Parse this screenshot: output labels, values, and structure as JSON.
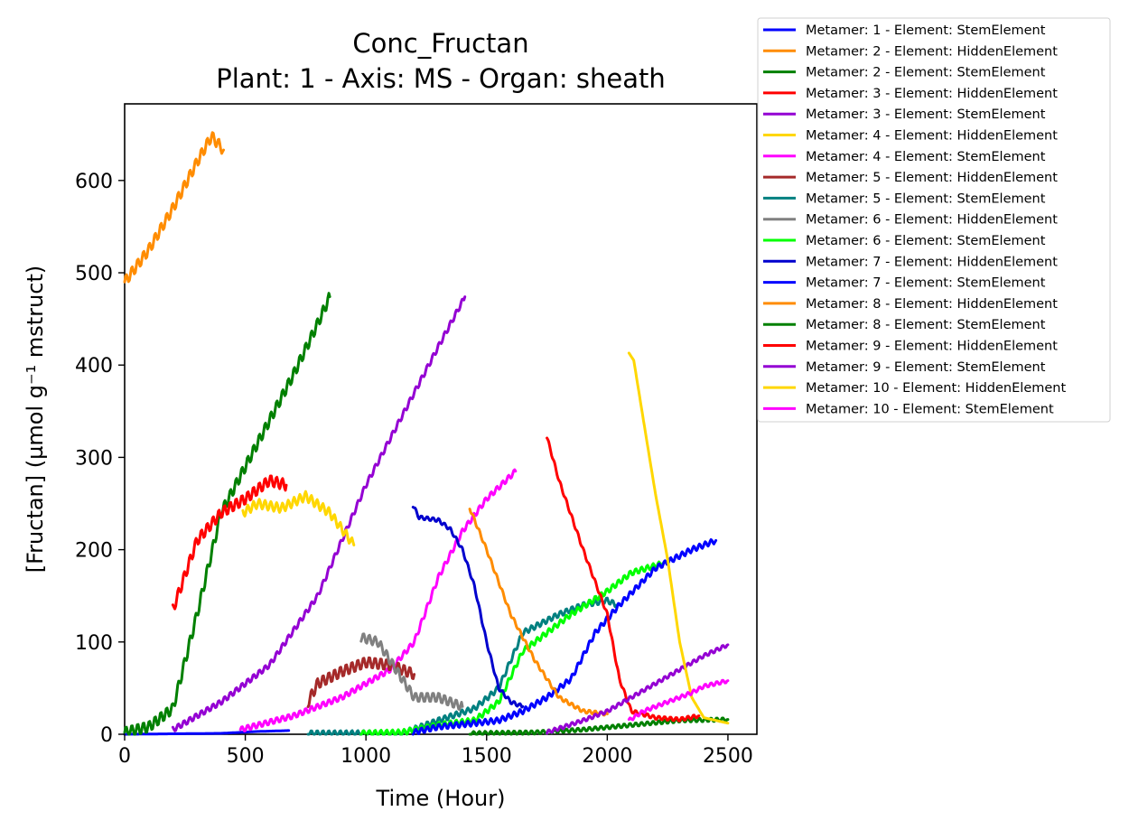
{
  "chart_data": {
    "type": "line",
    "title": "Conc_Fructan",
    "subtitle": "Plant: 1 - Axis: MS - Organ: sheath",
    "xlabel": "Time (Hour)",
    "ylabel": "[Fructan] (µmol g⁻¹ mstruct)",
    "xlim": [
      0,
      2620
    ],
    "ylim": [
      0,
      683
    ],
    "xticks": [
      0,
      500,
      1000,
      1500,
      2000,
      2500
    ],
    "yticks": [
      0,
      100,
      200,
      300,
      400,
      500,
      600
    ],
    "grid": false,
    "legend_position": "outside-top-right",
    "series": [
      {
        "name": "Metamer: 1 - Element: StemElement",
        "color": "#0000ff",
        "wiggle": 0,
        "points": [
          [
            0,
            0
          ],
          [
            400,
            1
          ],
          [
            550,
            3
          ],
          [
            680,
            4
          ]
        ]
      },
      {
        "name": "Metamer: 2 - Element: HiddenElement",
        "color": "#ff8c00",
        "wiggle": 6,
        "points": [
          [
            0,
            490
          ],
          [
            100,
            525
          ],
          [
            200,
            570
          ],
          [
            300,
            620
          ],
          [
            360,
            648
          ],
          [
            410,
            633
          ]
        ]
      },
      {
        "name": "Metamer: 2 - Element: StemElement",
        "color": "#008000",
        "wiggle": 6,
        "points": [
          [
            0,
            2
          ],
          [
            100,
            8
          ],
          [
            200,
            28
          ],
          [
            300,
            130
          ],
          [
            400,
            240
          ],
          [
            500,
            290
          ],
          [
            600,
            340
          ],
          [
            700,
            390
          ],
          [
            800,
            445
          ],
          [
            850,
            474
          ]
        ]
      },
      {
        "name": "Metamer: 3 - Element: HiddenElement",
        "color": "#ff0000",
        "wiggle": 6,
        "points": [
          [
            200,
            135
          ],
          [
            300,
            210
          ],
          [
            400,
            240
          ],
          [
            500,
            255
          ],
          [
            600,
            275
          ],
          [
            670,
            270
          ]
        ]
      },
      {
        "name": "Metamer: 3 - Element: StemElement",
        "color": "#9400d3",
        "wiggle": 3,
        "points": [
          [
            200,
            5
          ],
          [
            400,
            35
          ],
          [
            600,
            75
          ],
          [
            800,
            150
          ],
          [
            1000,
            270
          ],
          [
            1200,
            370
          ],
          [
            1300,
            420
          ],
          [
            1410,
            474
          ]
        ]
      },
      {
        "name": "Metamer: 4 - Element: HiddenElement",
        "color": "#ffd700",
        "wiggle": 5,
        "points": [
          [
            490,
            240
          ],
          [
            550,
            250
          ],
          [
            650,
            245
          ],
          [
            750,
            258
          ],
          [
            850,
            240
          ],
          [
            950,
            205
          ]
        ]
      },
      {
        "name": "Metamer: 4 - Element: StemElement",
        "color": "#ff00ff",
        "wiggle": 3,
        "points": [
          [
            480,
            5
          ],
          [
            700,
            20
          ],
          [
            900,
            40
          ],
          [
            1100,
            70
          ],
          [
            1200,
            100
          ],
          [
            1300,
            170
          ],
          [
            1400,
            220
          ],
          [
            1500,
            255
          ],
          [
            1620,
            285
          ]
        ]
      },
      {
        "name": "Metamer: 5 - Element: HiddenElement",
        "color": "#a52a2a",
        "wiggle": 6,
        "points": [
          [
            760,
            35
          ],
          [
            800,
            55
          ],
          [
            900,
            68
          ],
          [
            1000,
            78
          ],
          [
            1100,
            75
          ],
          [
            1200,
            65
          ]
        ]
      },
      {
        "name": "Metamer: 5 - Element: StemElement",
        "color": "#008080",
        "wiggle": 3,
        "points": [
          [
            760,
            1
          ],
          [
            1150,
            1
          ],
          [
            1300,
            15
          ],
          [
            1450,
            28
          ],
          [
            1550,
            50
          ],
          [
            1650,
            110
          ],
          [
            1800,
            130
          ],
          [
            1900,
            140
          ],
          [
            2000,
            145
          ],
          [
            2040,
            140
          ]
        ]
      },
      {
        "name": "Metamer: 6 - Element: HiddenElement",
        "color": "#808080",
        "wiggle": 5,
        "points": [
          [
            980,
            105
          ],
          [
            1050,
            100
          ],
          [
            1100,
            80
          ],
          [
            1200,
            40
          ],
          [
            1300,
            40
          ],
          [
            1400,
            30
          ]
        ]
      },
      {
        "name": "Metamer: 6 - Element: StemElement",
        "color": "#00ff00",
        "wiggle": 3,
        "points": [
          [
            980,
            1
          ],
          [
            1150,
            2
          ],
          [
            1300,
            10
          ],
          [
            1450,
            15
          ],
          [
            1550,
            35
          ],
          [
            1650,
            90
          ],
          [
            1750,
            110
          ],
          [
            1850,
            130
          ],
          [
            2000,
            155
          ],
          [
            2100,
            175
          ],
          [
            2230,
            185
          ]
        ]
      },
      {
        "name": "Metamer: 7 - Element: HiddenElement",
        "color": "#0000cd",
        "wiggle": 2,
        "points": [
          [
            1195,
            248
          ],
          [
            1220,
            235
          ],
          [
            1300,
            232
          ],
          [
            1350,
            222
          ],
          [
            1400,
            200
          ],
          [
            1450,
            160
          ],
          [
            1500,
            100
          ],
          [
            1550,
            50
          ],
          [
            1600,
            35
          ],
          [
            1650,
            30
          ]
        ]
      },
      {
        "name": "Metamer: 7 - Element: StemElement",
        "color": "#0000ff",
        "wiggle": 3,
        "points": [
          [
            1195,
            2
          ],
          [
            1300,
            8
          ],
          [
            1450,
            12
          ],
          [
            1550,
            15
          ],
          [
            1650,
            25
          ],
          [
            1750,
            40
          ],
          [
            1850,
            60
          ],
          [
            1950,
            110
          ],
          [
            2050,
            140
          ],
          [
            2200,
            180
          ],
          [
            2350,
            200
          ],
          [
            2450,
            210
          ]
        ]
      },
      {
        "name": "Metamer: 8 - Element: HiddenElement",
        "color": "#ff8c00",
        "wiggle": 2,
        "points": [
          [
            1430,
            245
          ],
          [
            1500,
            200
          ],
          [
            1600,
            130
          ],
          [
            1700,
            80
          ],
          [
            1800,
            40
          ],
          [
            1900,
            25
          ],
          [
            2000,
            22
          ]
        ]
      },
      {
        "name": "Metamer: 8 - Element: StemElement",
        "color": "#008000",
        "wiggle": 2,
        "points": [
          [
            1430,
            1
          ],
          [
            1700,
            2
          ],
          [
            1900,
            5
          ],
          [
            2100,
            10
          ],
          [
            2300,
            15
          ],
          [
            2500,
            16
          ]
        ]
      },
      {
        "name": "Metamer: 9 - Element: HiddenElement",
        "color": "#ff0000",
        "wiggle": 2,
        "points": [
          [
            1750,
            322
          ],
          [
            1800,
            275
          ],
          [
            1900,
            200
          ],
          [
            2000,
            130
          ],
          [
            2050,
            60
          ],
          [
            2100,
            25
          ],
          [
            2200,
            18
          ],
          [
            2300,
            16
          ],
          [
            2380,
            20
          ]
        ]
      },
      {
        "name": "Metamer: 9 - Element: StemElement",
        "color": "#9400d3",
        "wiggle": 2,
        "points": [
          [
            1750,
            2
          ],
          [
            1900,
            15
          ],
          [
            2000,
            25
          ],
          [
            2100,
            40
          ],
          [
            2200,
            55
          ],
          [
            2300,
            70
          ],
          [
            2400,
            85
          ],
          [
            2500,
            97
          ]
        ]
      },
      {
        "name": "Metamer: 10 - Element: HiddenElement",
        "color": "#ffd700",
        "wiggle": 0,
        "points": [
          [
            2090,
            413
          ],
          [
            2110,
            405
          ],
          [
            2150,
            340
          ],
          [
            2200,
            260
          ],
          [
            2250,
            190
          ],
          [
            2300,
            100
          ],
          [
            2350,
            40
          ],
          [
            2400,
            18
          ],
          [
            2500,
            12
          ]
        ]
      },
      {
        "name": "Metamer: 10 - Element: StemElement",
        "color": "#ff00ff",
        "wiggle": 2,
        "points": [
          [
            2090,
            15
          ],
          [
            2150,
            25
          ],
          [
            2250,
            35
          ],
          [
            2350,
            45
          ],
          [
            2400,
            52
          ],
          [
            2500,
            58
          ]
        ]
      }
    ]
  }
}
